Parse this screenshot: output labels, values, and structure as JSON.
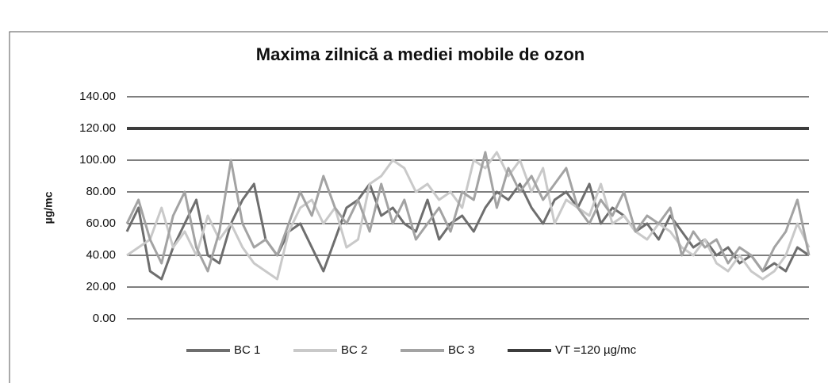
{
  "chart_data": {
    "type": "line",
    "title": "Maxima zilnică a mediei mobile de ozon",
    "y_label": "µg/mc",
    "ylim": [
      0,
      140
    ],
    "yticks": [
      {
        "value": 0,
        "label": "0.00"
      },
      {
        "value": 20,
        "label": "20.00"
      },
      {
        "value": 40,
        "label": "40.00"
      },
      {
        "value": 60,
        "label": "60.00"
      },
      {
        "value": 80,
        "label": "80.00"
      },
      {
        "value": 100,
        "label": "100.00"
      },
      {
        "value": 120,
        "label": "120.00"
      },
      {
        "value": 140,
        "label": "140.00"
      }
    ],
    "grid": true,
    "legend": "bottom",
    "series": [
      {
        "name": "BC 1",
        "color": "#6e6e6e",
        "values": [
          55,
          70,
          30,
          25,
          45,
          60,
          75,
          40,
          35,
          60,
          75,
          85,
          50,
          40,
          55,
          60,
          45,
          30,
          50,
          70,
          75,
          85,
          65,
          70,
          60,
          55,
          75,
          50,
          60,
          65,
          55,
          70,
          80,
          75,
          85,
          70,
          60,
          75,
          80,
          70,
          85,
          60,
          70,
          65,
          55,
          60,
          50,
          65,
          55,
          45,
          50,
          40,
          45,
          35,
          40,
          30,
          35,
          30,
          45,
          40
        ]
      },
      {
        "name": "BC 2",
        "color": "#c9c9c9",
        "values": [
          40,
          45,
          50,
          70,
          45,
          55,
          40,
          65,
          50,
          60,
          45,
          35,
          30,
          25,
          55,
          70,
          75,
          60,
          70,
          45,
          50,
          85,
          90,
          100,
          95,
          80,
          85,
          75,
          80,
          70,
          100,
          95,
          105,
          90,
          100,
          80,
          95,
          60,
          75,
          70,
          65,
          85,
          60,
          65,
          55,
          50,
          60,
          55,
          45,
          40,
          50,
          35,
          30,
          40,
          30,
          25,
          30,
          40,
          60,
          45
        ]
      },
      {
        "name": "BC 3",
        "color": "#a3a3a3",
        "values": [
          60,
          75,
          50,
          35,
          65,
          80,
          45,
          30,
          55,
          100,
          60,
          45,
          50,
          40,
          60,
          80,
          65,
          90,
          70,
          60,
          75,
          55,
          85,
          60,
          75,
          50,
          60,
          70,
          55,
          80,
          75,
          105,
          70,
          95,
          80,
          90,
          75,
          85,
          95,
          70,
          60,
          75,
          65,
          80,
          55,
          65,
          60,
          70,
          40,
          55,
          45,
          50,
          35,
          45,
          40,
          30,
          45,
          55,
          75,
          40
        ]
      },
      {
        "name": "VT =120 µg/mc",
        "color": "#3c3c3c",
        "values": [
          120,
          120,
          120,
          120,
          120,
          120,
          120,
          120,
          120,
          120,
          120,
          120,
          120,
          120,
          120,
          120,
          120,
          120,
          120,
          120,
          120,
          120,
          120,
          120,
          120,
          120,
          120,
          120,
          120,
          120,
          120,
          120,
          120,
          120,
          120,
          120,
          120,
          120,
          120,
          120,
          120,
          120,
          120,
          120,
          120,
          120,
          120,
          120,
          120,
          120,
          120,
          120,
          120,
          120,
          120,
          120,
          120,
          120,
          120,
          120
        ]
      }
    ]
  }
}
